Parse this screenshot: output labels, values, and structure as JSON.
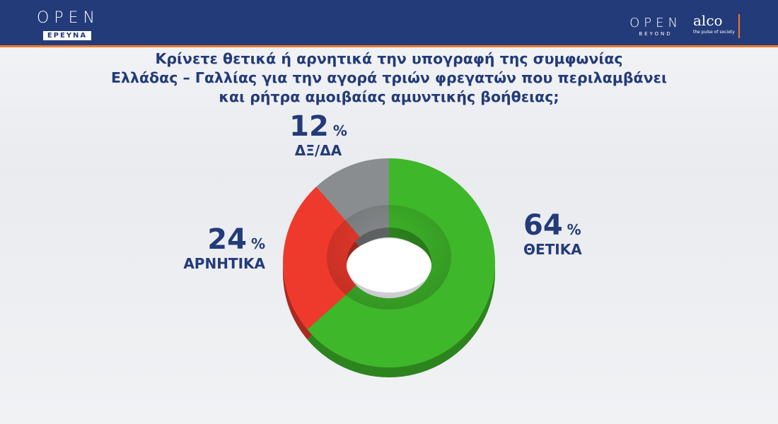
{
  "header": {
    "left_logo": {
      "word": "OPEN",
      "badge": "ΕΡΕΥΝΑ"
    },
    "right_logos": [
      {
        "word": "OPEN",
        "sub": "BEYOND"
      },
      {
        "word": "alco",
        "sub": "the pulse of society"
      }
    ],
    "colors": {
      "bar": "#233b79",
      "accent": "#f07b2a"
    }
  },
  "question_lines": [
    "Κρίνετε θετικά ή αρνητικά την υπογραφή της συμφωνίας",
    "Ελλάδας – Γαλλίας για την αγορά τριών φρεγατών που περιλαμβάνει",
    "και ρήτρα αμοιβαίας αμυντικής βοήθειας;"
  ],
  "chart_data": {
    "type": "pie",
    "style": "donut-3d",
    "unit": "%",
    "slices": [
      {
        "label": "ΘΕΤΙΚΑ",
        "value": 64,
        "color": "#3fb72a"
      },
      {
        "label": "ΑΡΝΗΤΙΚΑ",
        "value": 24,
        "color": "#ee3a2c"
      },
      {
        "label": "ΔΞ/ΔΑ",
        "value": 12,
        "color": "#8a8d8f"
      }
    ]
  }
}
